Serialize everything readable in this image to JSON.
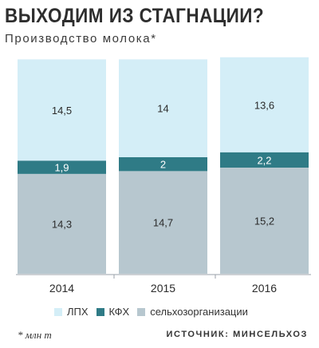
{
  "title": "ВЫХОДИМ ИЗ СТАГНАЦИИ?",
  "subtitle": "Производство молока*",
  "footnote": "* млн т",
  "source": "ИСТОЧНИК: МИНСЕЛЬХОЗ",
  "colors": {
    "lph": "#d4eef7",
    "kfh": "#2f7b86",
    "agro": "#b7c7cf",
    "axis": "#9aa2a8"
  },
  "legend": [
    {
      "label": "ЛПХ",
      "color": "#d4eef7"
    },
    {
      "label": "КФХ",
      "color": "#2f7b86"
    },
    {
      "label": "сельхозорганизации",
      "color": "#b7c7cf"
    }
  ],
  "chart_data": {
    "type": "bar",
    "stacked": true,
    "categories": [
      "2014",
      "2015",
      "2016"
    ],
    "series": [
      {
        "name": "сельхозорганизации",
        "values": [
          14.3,
          14.7,
          15.2
        ],
        "labels": [
          "14,3",
          "14,7",
          "15,2"
        ]
      },
      {
        "name": "КФХ",
        "values": [
          1.9,
          2.0,
          2.2
        ],
        "labels": [
          "1,9",
          "2",
          "2,2"
        ]
      },
      {
        "name": "ЛПХ",
        "values": [
          14.5,
          14.0,
          13.6
        ],
        "labels": [
          "14,5",
          "14",
          "13,6"
        ]
      }
    ],
    "grid": false,
    "legend_position": "bottom"
  }
}
